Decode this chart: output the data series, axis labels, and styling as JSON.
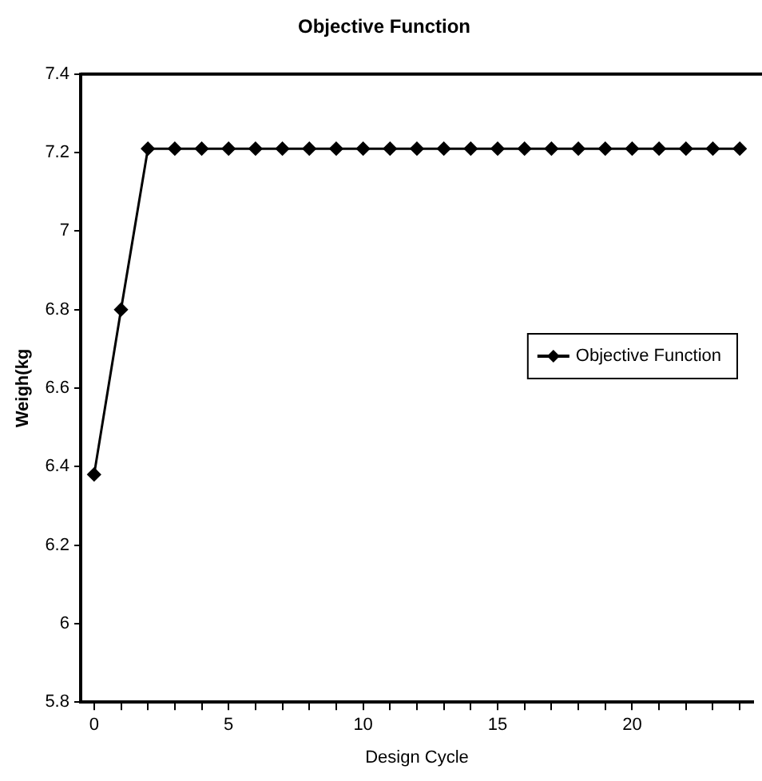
{
  "chart_data": {
    "type": "line",
    "title": "Objective Function",
    "xlabel": "Design Cycle",
    "ylabel": "Weigh(kg",
    "x": [
      0,
      1,
      2,
      3,
      4,
      5,
      6,
      7,
      8,
      9,
      10,
      11,
      12,
      13,
      14,
      15,
      16,
      17,
      18,
      19,
      20,
      21,
      22,
      23,
      24
    ],
    "series": [
      {
        "name": "Objective Function",
        "color": "#000000",
        "values": [
          6.38,
          6.8,
          7.21,
          7.21,
          7.21,
          7.21,
          7.21,
          7.21,
          7.21,
          7.21,
          7.21,
          7.21,
          7.21,
          7.21,
          7.21,
          7.21,
          7.21,
          7.21,
          7.21,
          7.21,
          7.21,
          7.21,
          7.21,
          7.21,
          7.21
        ]
      }
    ],
    "xlim": [
      -0.5,
      24.5
    ],
    "xticks": [
      0,
      {
        "value": 1,
        "label": null
      },
      {
        "value": 2,
        "label": null
      },
      {
        "value": 3,
        "label": null
      },
      {
        "value": 4,
        "label": null
      },
      5,
      {
        "value": 6,
        "label": null
      },
      {
        "value": 7,
        "label": null
      },
      {
        "value": 8,
        "label": null
      },
      {
        "value": 9,
        "label": null
      },
      10,
      {
        "value": 11,
        "label": null
      },
      {
        "value": 12,
        "label": null
      },
      {
        "value": 13,
        "label": null
      },
      {
        "value": 14,
        "label": null
      },
      15,
      {
        "value": 16,
        "label": null
      },
      {
        "value": 17,
        "label": null
      },
      {
        "value": 18,
        "label": null
      },
      {
        "value": 19,
        "label": null
      },
      20,
      {
        "value": 21,
        "label": null
      },
      {
        "value": 22,
        "label": null
      },
      {
        "value": 23,
        "label": null
      },
      {
        "value": 24,
        "label": null
      }
    ],
    "ylim": [
      5.8,
      7.4
    ],
    "yticks": [
      5.8,
      6,
      6.2,
      6.4,
      6.6,
      6.8,
      7,
      7.2,
      7.4
    ],
    "grid": false,
    "legend": "right",
    "marker": "diamond",
    "line_style": "solid"
  }
}
